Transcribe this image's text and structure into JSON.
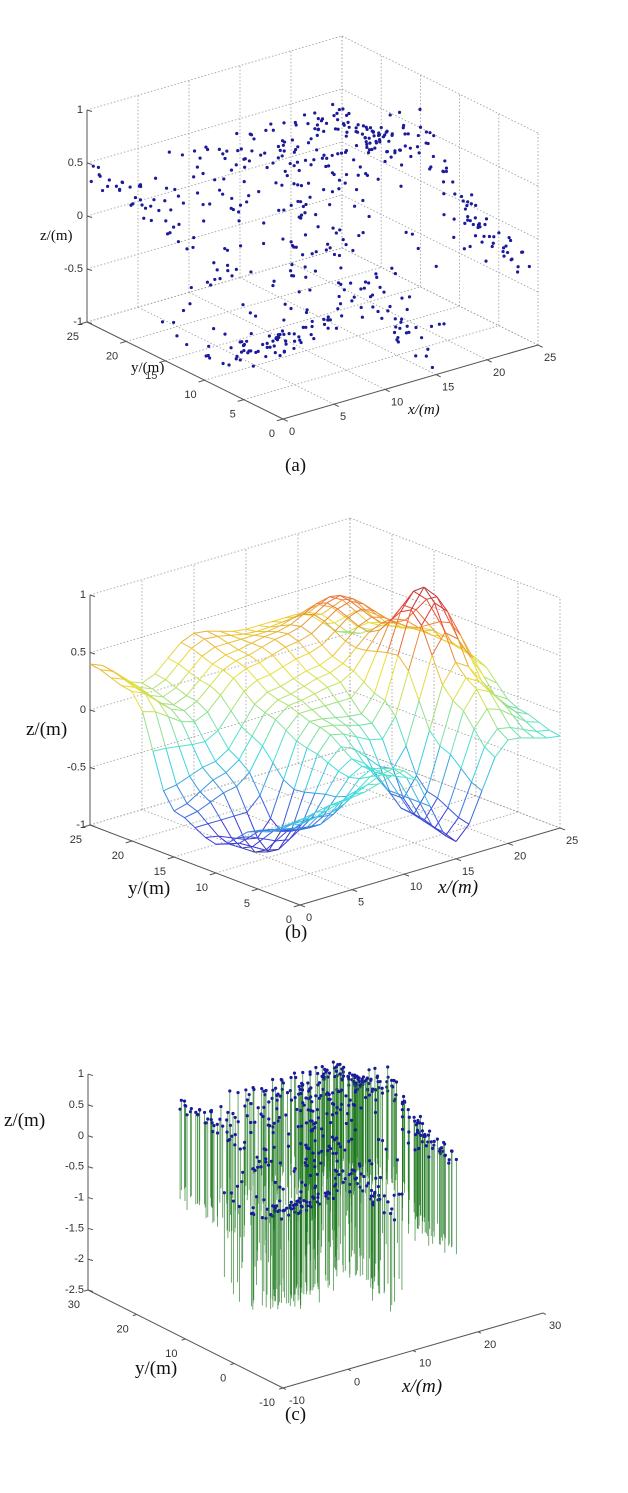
{
  "chart_data": [
    {
      "panel": "a",
      "type": "scatter",
      "caption": "(a)",
      "xlabel": "x/(m)",
      "ylabel": "y/(m)",
      "zlabel": "z/(m)",
      "xlim": [
        0,
        25
      ],
      "ylim": [
        0,
        25
      ],
      "zlim": [
        -1,
        1
      ],
      "xticks": [
        "0",
        "5",
        "10",
        "15",
        "20",
        "25"
      ],
      "yticks": [
        "0",
        "5",
        "10",
        "15",
        "20",
        "25"
      ],
      "zticks": [
        "-1",
        "-0.5",
        "0",
        "0.5",
        "1"
      ],
      "grid": true,
      "marker_color": "#1a1a9a",
      "point_count": 520
    },
    {
      "panel": "b",
      "type": "surface",
      "caption": "(b)",
      "xlabel": "x/(m)",
      "ylabel": "y/(m)",
      "zlabel": "z/(m)",
      "xlim": [
        0,
        25
      ],
      "ylim": [
        0,
        25
      ],
      "zlim": [
        -1,
        1
      ],
      "xticks": [
        "0",
        "5",
        "10",
        "15",
        "20",
        "25"
      ],
      "yticks": [
        "0",
        "5",
        "10",
        "15",
        "20",
        "25"
      ],
      "zticks": [
        "-1",
        "-0.5",
        "0",
        "0.5",
        "1"
      ],
      "grid": true
    },
    {
      "panel": "c",
      "type": "stem3",
      "caption": "(c)",
      "xlabel": "x/(m)",
      "ylabel": "y/(m)",
      "zlabel": "z/(m)",
      "xlim": [
        -10,
        30
      ],
      "ylim": [
        -10,
        30
      ],
      "zlim": [
        -2.5,
        1
      ],
      "xticks": [
        "-10",
        "0",
        "10",
        "20",
        "30"
      ],
      "yticks": [
        "-10",
        "0",
        "10",
        "20",
        "30"
      ],
      "zticks": [
        "-2.5",
        "-2",
        "-1.5",
        "-1",
        "-0.5",
        "0",
        "0.5",
        "1"
      ],
      "grid": false,
      "marker_color": "#1a1a9a",
      "stem_color": "#1f7a1f",
      "point_count": 520
    }
  ],
  "surface_grid": {
    "x": [
      0,
      5,
      10,
      15,
      20,
      25
    ],
    "y": [
      0,
      5,
      10,
      15,
      20,
      25
    ],
    "z": [
      [
        -0.3,
        -0.2,
        -0.1,
        -0.85,
        -0.1,
        -0.2
      ],
      [
        -0.5,
        -0.6,
        -0.2,
        -0.75,
        0.3,
        -0.1
      ],
      [
        -0.75,
        -0.95,
        0.0,
        -0.1,
        0.95,
        0.2
      ],
      [
        -0.6,
        -0.4,
        0.1,
        0.2,
        0.5,
        0.3
      ],
      [
        0.3,
        0.0,
        0.3,
        0.4,
        0.6,
        0.2
      ],
      [
        0.4,
        0.1,
        0.4,
        0.3,
        0.3,
        0.0
      ]
    ]
  }
}
